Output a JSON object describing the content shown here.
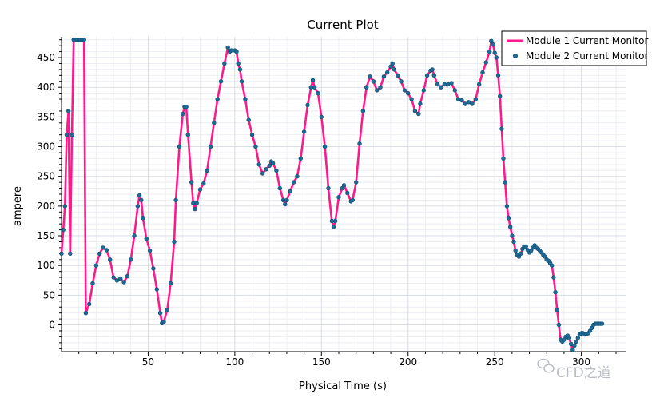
{
  "watermark": "CFD之道",
  "chart_data": {
    "type": "line",
    "title": "Current Plot",
    "xlabel": "Physical Time (s)",
    "ylabel": "ampere",
    "xlim": [
      0,
      326
    ],
    "ylim": [
      -45,
      485
    ],
    "xticks": [
      50,
      100,
      150,
      200,
      250,
      300
    ],
    "yticks": [
      0,
      50,
      100,
      150,
      200,
      250,
      300,
      350,
      400,
      450
    ],
    "grid": true,
    "legend_position": "top-right",
    "series": [
      {
        "name": "Module 1 Current Monitor",
        "style": "line",
        "color": "#ff1a8c"
      },
      {
        "name": "Module 2 Current Monitor",
        "style": "markers",
        "color": "#1f6a96"
      }
    ],
    "points": [
      [
        0,
        120
      ],
      [
        1,
        160
      ],
      [
        2,
        200
      ],
      [
        3,
        320
      ],
      [
        4,
        360
      ],
      [
        5,
        120
      ],
      [
        6,
        320
      ],
      [
        7,
        480
      ],
      [
        8,
        480
      ],
      [
        9,
        480
      ],
      [
        10,
        480
      ],
      [
        11,
        480
      ],
      [
        12,
        480
      ],
      [
        13,
        480
      ],
      [
        14,
        20
      ],
      [
        16,
        35
      ],
      [
        18,
        70
      ],
      [
        20,
        100
      ],
      [
        22,
        120
      ],
      [
        24,
        130
      ],
      [
        26,
        126
      ],
      [
        28,
        110
      ],
      [
        30,
        80
      ],
      [
        32,
        75
      ],
      [
        34,
        78
      ],
      [
        36,
        72
      ],
      [
        38,
        82
      ],
      [
        40,
        110
      ],
      [
        42,
        150
      ],
      [
        44,
        200
      ],
      [
        45,
        218
      ],
      [
        46,
        210
      ],
      [
        47,
        180
      ],
      [
        49,
        145
      ],
      [
        51,
        125
      ],
      [
        53,
        95
      ],
      [
        55,
        60
      ],
      [
        57,
        20
      ],
      [
        58,
        3
      ],
      [
        59,
        5
      ],
      [
        61,
        25
      ],
      [
        63,
        70
      ],
      [
        65,
        140
      ],
      [
        66,
        210
      ],
      [
        68,
        300
      ],
      [
        70,
        355
      ],
      [
        71,
        367
      ],
      [
        72,
        367
      ],
      [
        73,
        320
      ],
      [
        75,
        240
      ],
      [
        76,
        205
      ],
      [
        77,
        195
      ],
      [
        78,
        205
      ],
      [
        80,
        228
      ],
      [
        82,
        238
      ],
      [
        84,
        260
      ],
      [
        86,
        300
      ],
      [
        88,
        340
      ],
      [
        90,
        380
      ],
      [
        92,
        410
      ],
      [
        94,
        440
      ],
      [
        96,
        467
      ],
      [
        97,
        460
      ],
      [
        98,
        462
      ],
      [
        100,
        462
      ],
      [
        101,
        460
      ],
      [
        102,
        440
      ],
      [
        103,
        430
      ],
      [
        104,
        410
      ],
      [
        106,
        380
      ],
      [
        108,
        345
      ],
      [
        110,
        320
      ],
      [
        112,
        300
      ],
      [
        114,
        270
      ],
      [
        116,
        255
      ],
      [
        118,
        262
      ],
      [
        120,
        268
      ],
      [
        121,
        275
      ],
      [
        122,
        272
      ],
      [
        124,
        260
      ],
      [
        126,
        230
      ],
      [
        128,
        210
      ],
      [
        129,
        203
      ],
      [
        130,
        210
      ],
      [
        132,
        225
      ],
      [
        134,
        240
      ],
      [
        136,
        250
      ],
      [
        138,
        280
      ],
      [
        140,
        325
      ],
      [
        142,
        370
      ],
      [
        144,
        400
      ],
      [
        145,
        412
      ],
      [
        146,
        400
      ],
      [
        148,
        390
      ],
      [
        150,
        350
      ],
      [
        152,
        300
      ],
      [
        154,
        230
      ],
      [
        156,
        175
      ],
      [
        157,
        165
      ],
      [
        158,
        175
      ],
      [
        160,
        215
      ],
      [
        162,
        230
      ],
      [
        163,
        235
      ],
      [
        165,
        222
      ],
      [
        167,
        208
      ],
      [
        168,
        210
      ],
      [
        170,
        240
      ],
      [
        172,
        305
      ],
      [
        174,
        360
      ],
      [
        176,
        400
      ],
      [
        178,
        418
      ],
      [
        180,
        410
      ],
      [
        182,
        395
      ],
      [
        184,
        400
      ],
      [
        186,
        418
      ],
      [
        188,
        425
      ],
      [
        190,
        435
      ],
      [
        191,
        440
      ],
      [
        192,
        430
      ],
      [
        194,
        420
      ],
      [
        196,
        410
      ],
      [
        198,
        395
      ],
      [
        200,
        390
      ],
      [
        202,
        380
      ],
      [
        204,
        360
      ],
      [
        206,
        355
      ],
      [
        207,
        372
      ],
      [
        209,
        395
      ],
      [
        211,
        420
      ],
      [
        213,
        428
      ],
      [
        214,
        430
      ],
      [
        215,
        420
      ],
      [
        217,
        405
      ],
      [
        219,
        400
      ],
      [
        221,
        405
      ],
      [
        223,
        405
      ],
      [
        225,
        407
      ],
      [
        227,
        395
      ],
      [
        229,
        380
      ],
      [
        231,
        378
      ],
      [
        233,
        372
      ],
      [
        235,
        375
      ],
      [
        237,
        372
      ],
      [
        239,
        380
      ],
      [
        241,
        405
      ],
      [
        243,
        425
      ],
      [
        245,
        442
      ],
      [
        247,
        460
      ],
      [
        248,
        478
      ],
      [
        249,
        472
      ],
      [
        250,
        458
      ],
      [
        251,
        450
      ],
      [
        252,
        420
      ],
      [
        253,
        385
      ],
      [
        254,
        330
      ],
      [
        255,
        280
      ],
      [
        256,
        240
      ],
      [
        257,
        200
      ],
      [
        258,
        180
      ],
      [
        259,
        165
      ],
      [
        260,
        150
      ],
      [
        261,
        140
      ],
      [
        262,
        125
      ],
      [
        263,
        118
      ],
      [
        264,
        115
      ],
      [
        265,
        120
      ],
      [
        266,
        128
      ],
      [
        267,
        132
      ],
      [
        268,
        132
      ],
      [
        269,
        126
      ],
      [
        270,
        122
      ],
      [
        271,
        125
      ],
      [
        272,
        130
      ],
      [
        273,
        134
      ],
      [
        274,
        130
      ],
      [
        275,
        128
      ],
      [
        276,
        125
      ],
      [
        277,
        122
      ],
      [
        278,
        118
      ],
      [
        279,
        115
      ],
      [
        280,
        110
      ],
      [
        281,
        108
      ],
      [
        282,
        104
      ],
      [
        283,
        100
      ],
      [
        284,
        80
      ],
      [
        285,
        55
      ],
      [
        286,
        25
      ],
      [
        287,
        0
      ],
      [
        288,
        -25
      ],
      [
        289,
        -28
      ],
      [
        290,
        -25
      ],
      [
        291,
        -20
      ],
      [
        292,
        -18
      ],
      [
        293,
        -22
      ],
      [
        294,
        -32
      ],
      [
        295,
        -42
      ],
      [
        296,
        -35
      ],
      [
        297,
        -28
      ],
      [
        298,
        -22
      ],
      [
        299,
        -16
      ],
      [
        300,
        -14
      ],
      [
        301,
        -14
      ],
      [
        302,
        -16
      ],
      [
        303,
        -15
      ],
      [
        304,
        -14
      ],
      [
        305,
        -10
      ],
      [
        306,
        -5
      ],
      [
        307,
        0
      ],
      [
        308,
        2
      ],
      [
        309,
        2
      ],
      [
        310,
        2
      ],
      [
        311,
        2
      ],
      [
        312,
        2
      ]
    ]
  }
}
